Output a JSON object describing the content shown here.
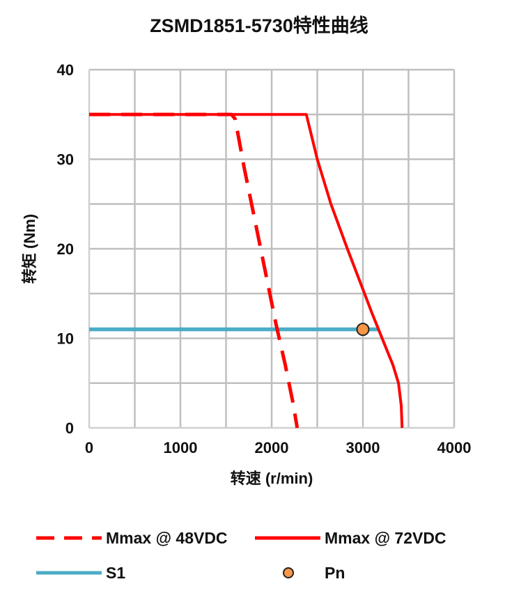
{
  "chart_data": {
    "type": "line",
    "title": "ZSMD1851-5730特性曲线",
    "xlabel": "转速 (r/min)",
    "ylabel": "转矩 (Nm)",
    "xlim": [
      0,
      4000
    ],
    "ylim": [
      0,
      40
    ],
    "x_ticks": [
      "0",
      "1000",
      "2000",
      "3000",
      "4000"
    ],
    "y_ticks": [
      "0",
      "10",
      "20",
      "30",
      "40"
    ],
    "grid": true,
    "legend_position": "bottom",
    "series": [
      {
        "name": "Mmax @ 48VDC",
        "style": "dashed",
        "color": "#ff0000",
        "points": [
          [
            0,
            35
          ],
          [
            1560,
            35
          ],
          [
            1600,
            34.5
          ],
          [
            1700,
            29
          ],
          [
            1800,
            24
          ],
          [
            1950,
            16.5
          ],
          [
            2050,
            11.5
          ],
          [
            2150,
            7
          ],
          [
            2230,
            3
          ],
          [
            2280,
            0
          ]
        ]
      },
      {
        "name": "Mmax @ 72VDC",
        "style": "solid",
        "color": "#ff0000",
        "points": [
          [
            0,
            35
          ],
          [
            2380,
            35
          ],
          [
            2500,
            30
          ],
          [
            2650,
            25
          ],
          [
            2830,
            20
          ],
          [
            2980,
            16
          ],
          [
            3100,
            12.8
          ],
          [
            3250,
            9
          ],
          [
            3330,
            7
          ],
          [
            3390,
            5
          ],
          [
            3420,
            2.5
          ],
          [
            3430,
            0
          ]
        ]
      },
      {
        "name": "S1",
        "style": "solid",
        "color": "#4bacc6",
        "points": [
          [
            0,
            11
          ],
          [
            3180,
            11
          ]
        ]
      },
      {
        "name": "Pn",
        "style": "marker",
        "color": "#f79646",
        "points": [
          [
            3000,
            11
          ]
        ]
      }
    ]
  }
}
